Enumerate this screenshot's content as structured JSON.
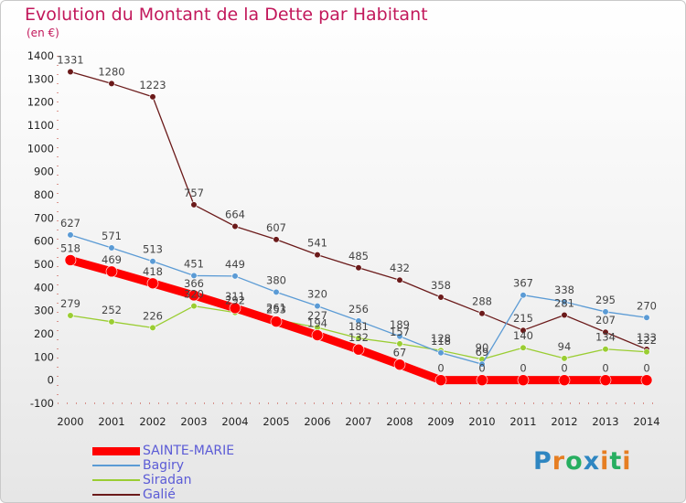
{
  "title": "Evolution du Montant de la Dette par Habitant",
  "unit": "(en €)",
  "logo": {
    "text": "Proxiti",
    "letters": [
      {
        "ch": "P",
        "color": "#2e86c1"
      },
      {
        "ch": "r",
        "color": "#e67e22"
      },
      {
        "ch": "o",
        "color": "#27ae60"
      },
      {
        "ch": "x",
        "color": "#2e86c1"
      },
      {
        "ch": "i",
        "color": "#e67e22"
      },
      {
        "ch": "t",
        "color": "#27ae60"
      },
      {
        "ch": "i",
        "color": "#e67e22"
      }
    ]
  },
  "chart_data": {
    "type": "line",
    "title": "Evolution du Montant de la Dette par Habitant",
    "ylabel": "(en €)",
    "xlabel": "",
    "x": [
      "2000",
      "2001",
      "2002",
      "2003",
      "2004",
      "2005",
      "2006",
      "2007",
      "2008",
      "2009",
      "2010",
      "2011",
      "2012",
      "2013",
      "2014"
    ],
    "ylim": [
      -100,
      1400
    ],
    "yticks": [
      -100,
      0,
      100,
      200,
      300,
      400,
      500,
      600,
      700,
      800,
      900,
      1000,
      1100,
      1200,
      1300,
      1400
    ],
    "legend_position": "bottom-left",
    "series": [
      {
        "name": "SAINTE-MARIE",
        "color": "#ff0000",
        "values": [
          518,
          469,
          418,
          366,
          311,
          253,
          194,
          132,
          67,
          0,
          0,
          0,
          0,
          0,
          0
        ]
      },
      {
        "name": "Bagiry",
        "color": "#5b9bd5",
        "values": [
          627,
          571,
          513,
          451,
          449,
          380,
          320,
          256,
          189,
          118,
          69,
          367,
          338,
          295,
          270
        ]
      },
      {
        "name": "Siradan",
        "color": "#9acd32",
        "values": [
          279,
          252,
          226,
          320,
          292,
          261,
          227,
          181,
          157,
          128,
          90,
          140,
          94,
          134,
          122
        ]
      },
      {
        "name": "Galié",
        "color": "#6b1a1a",
        "values": [
          1331,
          1280,
          1223,
          757,
          664,
          607,
          541,
          485,
          432,
          358,
          288,
          215,
          281,
          207,
          133
        ]
      }
    ]
  }
}
